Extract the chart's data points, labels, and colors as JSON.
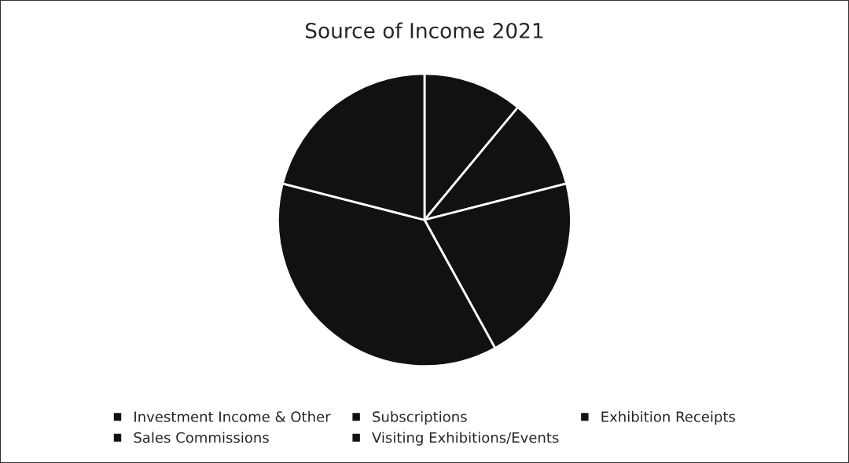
{
  "chart_data": {
    "type": "pie",
    "title": "Source of Income 2021",
    "categories": [
      "Investment Income & Other",
      "Subscriptions",
      "Exhibition Receipts",
      "Sales Commissions",
      "Visiting Exhibitions/Events"
    ],
    "values": [
      11,
      10,
      21,
      37,
      21
    ],
    "colors": [
      "#111111",
      "#111111",
      "#111111",
      "#111111",
      "#111111"
    ],
    "legend": "bottom"
  }
}
